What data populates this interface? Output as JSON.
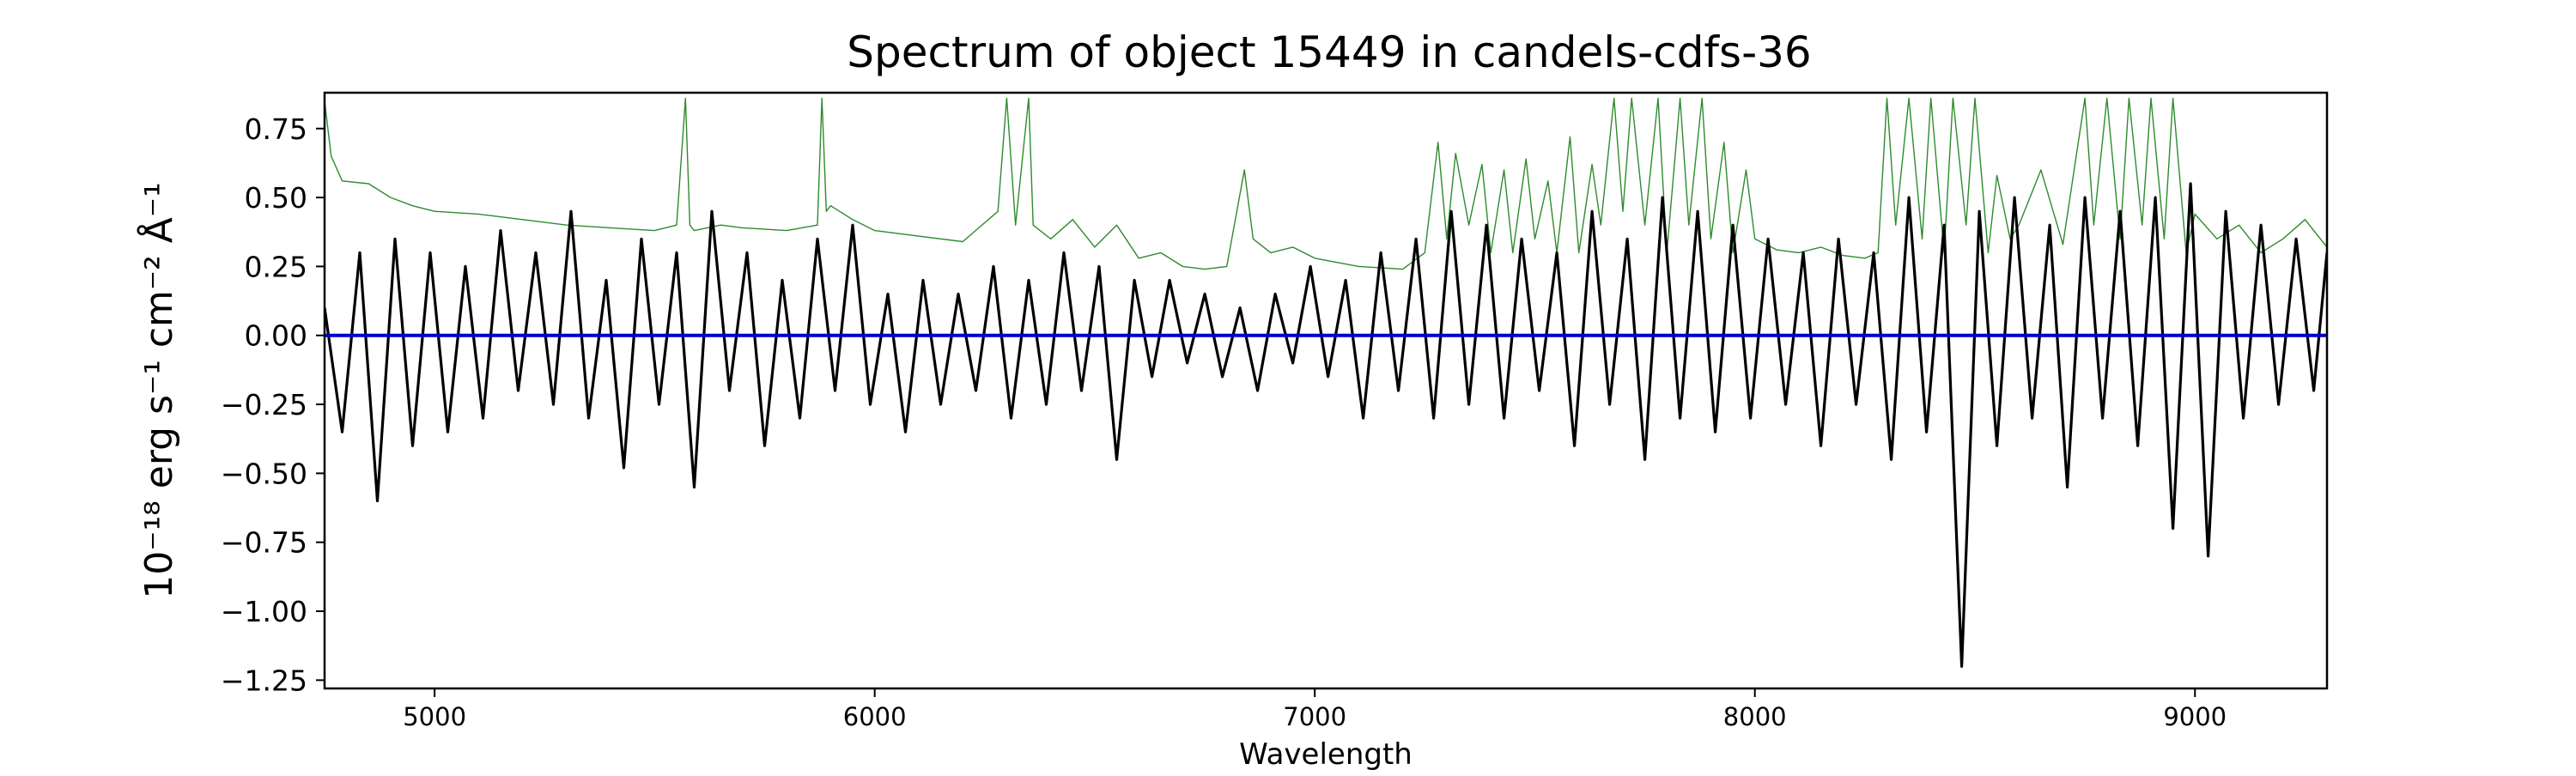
{
  "chart_data": {
    "type": "line",
    "title": "Spectrum of object 15449 in candels-cdfs-36",
    "xlabel": "Wavelength",
    "ylabel": "10⁻¹⁸ erg s⁻¹ cm⁻² Å⁻¹",
    "xlim": [
      4750,
      9300
    ],
    "ylim": [
      -1.28,
      0.88
    ],
    "xticks": [
      5000,
      6000,
      7000,
      8000,
      9000
    ],
    "xtick_labels": [
      "5000",
      "6000",
      "7000",
      "8000",
      "9000"
    ],
    "yticks": [
      0.75,
      0.5,
      0.25,
      0.0,
      -0.25,
      -0.5,
      -0.75,
      -1.0,
      -1.25
    ],
    "ytick_labels": [
      "0.75",
      "0.50",
      "0.25",
      "0.00",
      "−0.25",
      "−0.50",
      "−0.75",
      "−1.00",
      "−1.25"
    ],
    "grid": false,
    "legend": "none",
    "colors": {
      "flux": "#000000",
      "error": "#2e8b2e",
      "model": "#0000cc"
    },
    "series": [
      {
        "role": "flux",
        "x": [
          4750,
          4790,
          4830,
          4870,
          4910,
          4950,
          4990,
          5030,
          5070,
          5110,
          5150,
          5190,
          5230,
          5270,
          5310,
          5350,
          5390,
          5430,
          5470,
          5510,
          5550,
          5590,
          5630,
          5670,
          5710,
          5750,
          5790,
          5830,
          5870,
          5910,
          5950,
          5990,
          6030,
          6070,
          6110,
          6150,
          6190,
          6230,
          6270,
          6310,
          6350,
          6390,
          6430,
          6470,
          6510,
          6550,
          6590,
          6630,
          6670,
          6710,
          6750,
          6790,
          6830,
          6870,
          6910,
          6950,
          6990,
          7030,
          7070,
          7110,
          7150,
          7190,
          7230,
          7270,
          7310,
          7350,
          7390,
          7430,
          7470,
          7510,
          7550,
          7590,
          7630,
          7670,
          7710,
          7750,
          7790,
          7830,
          7870,
          7910,
          7950,
          7990,
          8030,
          8070,
          8110,
          8150,
          8190,
          8230,
          8270,
          8310,
          8350,
          8390,
          8430,
          8470,
          8510,
          8550,
          8590,
          8630,
          8670,
          8710,
          8750,
          8790,
          8830,
          8870,
          8910,
          8950,
          8990,
          9030,
          9070,
          9110,
          9150,
          9190,
          9230,
          9270,
          9300
        ],
        "y": [
          0.1,
          -0.35,
          0.3,
          -0.6,
          0.35,
          -0.4,
          0.3,
          -0.35,
          0.25,
          -0.3,
          0.38,
          -0.2,
          0.3,
          -0.25,
          0.45,
          -0.3,
          0.2,
          -0.48,
          0.35,
          -0.25,
          0.3,
          -0.55,
          0.45,
          -0.2,
          0.3,
          -0.4,
          0.2,
          -0.3,
          0.35,
          -0.2,
          0.4,
          -0.25,
          0.15,
          -0.35,
          0.2,
          -0.25,
          0.15,
          -0.2,
          0.25,
          -0.3,
          0.2,
          -0.25,
          0.3,
          -0.2,
          0.25,
          -0.45,
          0.2,
          -0.15,
          0.2,
          -0.1,
          0.15,
          -0.15,
          0.1,
          -0.2,
          0.15,
          -0.1,
          0.25,
          -0.15,
          0.2,
          -0.3,
          0.3,
          -0.2,
          0.35,
          -0.3,
          0.45,
          -0.25,
          0.4,
          -0.3,
          0.35,
          -0.2,
          0.3,
          -0.4,
          0.45,
          -0.25,
          0.35,
          -0.45,
          0.5,
          -0.3,
          0.45,
          -0.35,
          0.4,
          -0.3,
          0.35,
          -0.25,
          0.3,
          -0.4,
          0.35,
          -0.25,
          0.3,
          -0.45,
          0.5,
          -0.35,
          0.4,
          -1.2,
          0.45,
          -0.4,
          0.5,
          -0.3,
          0.4,
          -0.55,
          0.5,
          -0.3,
          0.45,
          -0.4,
          0.5,
          -0.7,
          0.55,
          -0.8,
          0.45,
          -0.3,
          0.4,
          -0.25,
          0.35,
          -0.2,
          0.3
        ]
      },
      {
        "role": "error",
        "x": [
          4750,
          4765,
          4790,
          4850,
          4900,
          4950,
          5000,
          5100,
          5200,
          5300,
          5400,
          5500,
          5550,
          5570,
          5580,
          5590,
          5650,
          5700,
          5800,
          5870,
          5880,
          5890,
          5900,
          5950,
          6000,
          6100,
          6200,
          6280,
          6300,
          6320,
          6350,
          6360,
          6400,
          6450,
          6500,
          6550,
          6600,
          6650,
          6700,
          6750,
          6800,
          6840,
          6860,
          6900,
          6950,
          7000,
          7100,
          7200,
          7250,
          7280,
          7300,
          7320,
          7350,
          7380,
          7400,
          7430,
          7450,
          7480,
          7500,
          7530,
          7550,
          7580,
          7600,
          7630,
          7650,
          7680,
          7700,
          7720,
          7750,
          7780,
          7800,
          7830,
          7850,
          7880,
          7900,
          7930,
          7950,
          7980,
          8000,
          8050,
          8100,
          8150,
          8200,
          8250,
          8280,
          8300,
          8320,
          8350,
          8380,
          8400,
          8430,
          8450,
          8480,
          8500,
          8530,
          8550,
          8580,
          8600,
          8650,
          8700,
          8750,
          8770,
          8800,
          8830,
          8850,
          8880,
          8900,
          8930,
          8950,
          8980,
          9000,
          9050,
          9100,
          9150,
          9200,
          9250,
          9300
        ],
        "y": [
          0.85,
          0.65,
          0.56,
          0.55,
          0.5,
          0.47,
          0.45,
          0.44,
          0.42,
          0.4,
          0.39,
          0.38,
          0.4,
          0.86,
          0.4,
          0.38,
          0.4,
          0.39,
          0.38,
          0.4,
          0.86,
          0.45,
          0.47,
          0.42,
          0.38,
          0.36,
          0.34,
          0.45,
          0.86,
          0.4,
          0.86,
          0.4,
          0.35,
          0.42,
          0.32,
          0.4,
          0.28,
          0.3,
          0.25,
          0.24,
          0.25,
          0.6,
          0.35,
          0.3,
          0.32,
          0.28,
          0.25,
          0.24,
          0.3,
          0.7,
          0.35,
          0.66,
          0.4,
          0.62,
          0.3,
          0.6,
          0.3,
          0.64,
          0.35,
          0.56,
          0.3,
          0.72,
          0.3,
          0.62,
          0.4,
          0.86,
          0.45,
          0.86,
          0.4,
          0.86,
          0.3,
          0.86,
          0.4,
          0.86,
          0.35,
          0.7,
          0.3,
          0.6,
          0.35,
          0.31,
          0.3,
          0.32,
          0.29,
          0.28,
          0.3,
          0.86,
          0.4,
          0.86,
          0.35,
          0.86,
          0.3,
          0.86,
          0.4,
          0.86,
          0.3,
          0.58,
          0.35,
          0.4,
          0.6,
          0.33,
          0.86,
          0.4,
          0.86,
          0.35,
          0.86,
          0.4,
          0.86,
          0.35,
          0.86,
          0.3,
          0.44,
          0.35,
          0.4,
          0.3,
          0.35,
          0.42,
          0.32
        ]
      },
      {
        "role": "model",
        "x": [
          4750,
          9300
        ],
        "y": [
          0.0,
          0.0
        ]
      }
    ]
  }
}
